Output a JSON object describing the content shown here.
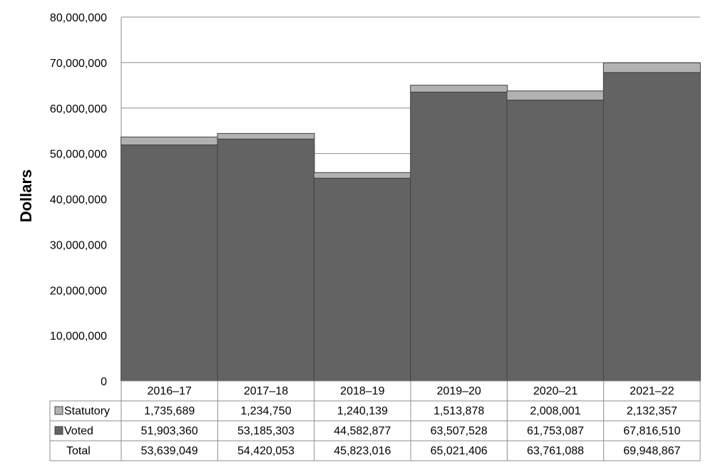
{
  "chart_data": {
    "type": "bar",
    "stacked": true,
    "title": "",
    "xlabel": "",
    "ylabel": "Dollars",
    "ylim": [
      0,
      80000000
    ],
    "y_ticks": [
      "0",
      "10,000,000",
      "20,000,000",
      "30,000,000",
      "40,000,000",
      "50,000,000",
      "60,000,000",
      "70,000,000",
      "80,000,000"
    ],
    "grid": true,
    "legend": "data-table",
    "categories": [
      "2016–17",
      "2017–18",
      "2018–19",
      "2019–20",
      "2020–21",
      "2021–22"
    ],
    "series": [
      {
        "name": "Voted",
        "color": "#636363",
        "values": [
          51903360,
          53185303,
          44582877,
          63507528,
          61753087,
          67816510
        ],
        "labels": [
          "51,903,360",
          "53,185,303",
          "44,582,877",
          "63,507,528",
          "61,753,087",
          "67,816,510"
        ]
      },
      {
        "name": "Statutory",
        "color": "#b2b2b2",
        "values": [
          1735689,
          1234750,
          1240139,
          1513878,
          2008001,
          2132357
        ],
        "labels": [
          "1,735,689",
          "1,234,750",
          "1,240,139",
          "1,513,878",
          "2,008,001",
          "2,132,357"
        ]
      }
    ],
    "table": {
      "rows": [
        {
          "label": "Statutory",
          "swatch": "#b2b2b2",
          "values": [
            "1,735,689",
            "1,234,750",
            "1,240,139",
            "1,513,878",
            "2,008,001",
            "2,132,357"
          ]
        },
        {
          "label": "Voted",
          "swatch": "#636363",
          "values": [
            "51,903,360",
            "53,185,303",
            "44,582,877",
            "63,507,528",
            "61,753,087",
            "67,816,510"
          ]
        },
        {
          "label": "Total",
          "swatch": "",
          "values": [
            "53,639,049",
            "54,420,053",
            "45,823,016",
            "65,021,406",
            "63,761,088",
            "69,948,867"
          ]
        }
      ]
    }
  }
}
